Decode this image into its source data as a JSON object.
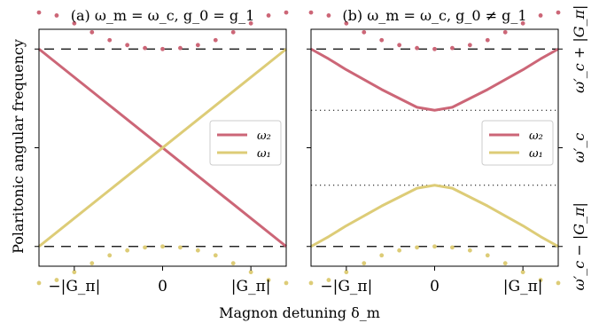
{
  "figure": {
    "xlabel": "Magnon detuning δ_m",
    "ylabel": "Polaritonic angular frequency"
  },
  "chart_data": [
    {
      "type": "line",
      "title": "(a) ω_m = ω_c, g_0 = g_1",
      "xlim": [
        -1.4,
        1.4
      ],
      "ylim": [
        -1.2,
        1.2
      ],
      "x_ticks": [
        -1,
        0,
        1
      ],
      "x_tick_labels": [
        "−|G_π|",
        "0",
        "|G_π|"
      ],
      "y_ticks": [
        -1,
        0,
        1
      ],
      "dashed_reference_lines": [
        1,
        -1
      ],
      "dotted_reference_lines": [],
      "legend": {
        "position": "center-right",
        "entries": [
          "ω₂",
          "ω₁"
        ]
      },
      "series": [
        {
          "name": "ω₂",
          "color": "#cc6677",
          "style": "solid",
          "x": [
            -1.4,
            1.4
          ],
          "y": [
            1.0,
            -1.0
          ]
        },
        {
          "name": "ω₁",
          "color": "#ddcc77",
          "style": "solid",
          "x": [
            -1.4,
            1.4
          ],
          "y": [
            -1.0,
            1.0
          ]
        },
        {
          "color": "#cc6677",
          "style": "dotted",
          "x": [
            -1.4,
            -1.2,
            -1.0,
            -0.8,
            -0.6,
            -0.4,
            -0.2,
            0.0,
            0.2,
            0.4,
            0.6,
            0.8,
            1.0,
            1.2,
            1.4
          ],
          "y": [
            1.37,
            1.34,
            1.26,
            1.17,
            1.09,
            1.04,
            1.01,
            1.0,
            1.01,
            1.04,
            1.09,
            1.17,
            1.26,
            1.34,
            1.37
          ]
        },
        {
          "color": "#ddcc77",
          "style": "dotted",
          "x": [
            -1.4,
            -1.2,
            -1.0,
            -0.8,
            -0.6,
            -0.4,
            -0.2,
            0.0,
            0.2,
            0.4,
            0.6,
            0.8,
            1.0,
            1.2,
            1.4
          ],
          "y": [
            -1.37,
            -1.34,
            -1.26,
            -1.17,
            -1.09,
            -1.04,
            -1.01,
            -1.0,
            -1.01,
            -1.04,
            -1.09,
            -1.17,
            -1.26,
            -1.34,
            -1.37
          ]
        }
      ]
    },
    {
      "type": "line",
      "title": "(b) ω_m = ω_c, g_0 ≠ g_1",
      "xlim": [
        -1.4,
        1.4
      ],
      "ylim": [
        -1.2,
        1.2
      ],
      "x_ticks": [
        -1,
        0,
        1
      ],
      "x_tick_labels": [
        "−|G_π|",
        "0",
        "|G_π|"
      ],
      "y_ticks": [
        -1,
        0,
        1
      ],
      "right_tick_labels": [
        "ω′_c + |G_π|",
        "ω′_c",
        "ω′_c − |G_π|"
      ],
      "dashed_reference_lines": [
        1,
        -1
      ],
      "dotted_reference_lines": [
        0.38,
        -0.38
      ],
      "legend": {
        "position": "center-right",
        "entries": [
          "ω₂",
          "ω₁"
        ]
      },
      "series": [
        {
          "name": "ω₂",
          "color": "#cc6677",
          "style": "solid",
          "x": [
            -1.4,
            -1.2,
            -1.0,
            -0.8,
            -0.6,
            -0.4,
            -0.2,
            0.0,
            0.2,
            0.4,
            0.6,
            0.8,
            1.0,
            1.2,
            1.4
          ],
          "y": [
            1.0,
            0.9,
            0.79,
            0.69,
            0.59,
            0.5,
            0.41,
            0.38,
            0.41,
            0.5,
            0.59,
            0.69,
            0.79,
            0.9,
            1.0
          ]
        },
        {
          "name": "ω₁",
          "color": "#ddcc77",
          "style": "solid",
          "x": [
            -1.4,
            -1.2,
            -1.0,
            -0.8,
            -0.6,
            -0.4,
            -0.2,
            0.0,
            0.2,
            0.4,
            0.6,
            0.8,
            1.0,
            1.2,
            1.4
          ],
          "y": [
            -1.0,
            -0.9,
            -0.79,
            -0.69,
            -0.59,
            -0.5,
            -0.41,
            -0.38,
            -0.41,
            -0.5,
            -0.59,
            -0.69,
            -0.79,
            -0.9,
            -1.0
          ]
        },
        {
          "color": "#cc6677",
          "style": "dotted",
          "x": [
            -1.4,
            -1.2,
            -1.0,
            -0.8,
            -0.6,
            -0.4,
            -0.2,
            0.0,
            0.2,
            0.4,
            0.6,
            0.8,
            1.0,
            1.2,
            1.4
          ],
          "y": [
            1.37,
            1.34,
            1.26,
            1.17,
            1.09,
            1.04,
            1.01,
            1.0,
            1.01,
            1.04,
            1.09,
            1.17,
            1.26,
            1.34,
            1.37
          ]
        },
        {
          "color": "#ddcc77",
          "style": "dotted",
          "x": [
            -1.4,
            -1.2,
            -1.0,
            -0.8,
            -0.6,
            -0.4,
            -0.2,
            0.0,
            0.2,
            0.4,
            0.6,
            0.8,
            1.0,
            1.2,
            1.4
          ],
          "y": [
            -1.37,
            -1.34,
            -1.26,
            -1.17,
            -1.09,
            -1.04,
            -1.01,
            -1.0,
            -1.01,
            -1.04,
            -1.09,
            -1.17,
            -1.26,
            -1.34,
            -1.37
          ]
        }
      ]
    }
  ]
}
